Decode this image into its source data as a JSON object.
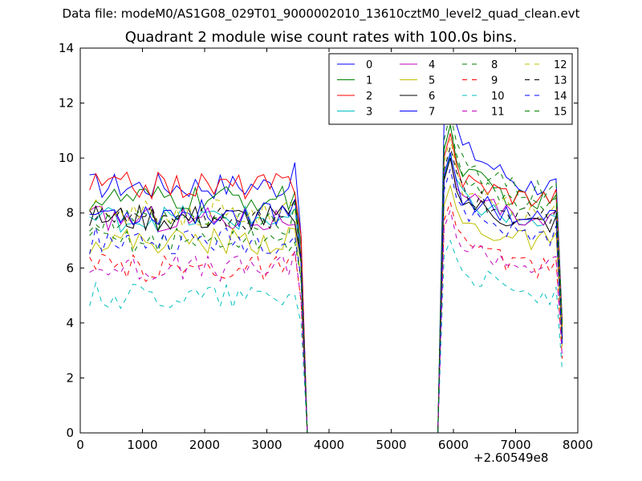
{
  "chart_data": {
    "type": "line",
    "suptitle": "Data file: modeM0/AS1G08_029T01_9000002010_13610cztM0_level2_quad_clean.evt",
    "title": "Quadrant 2 module wise count rates with 100.0s bins.",
    "xlabel": "",
    "ylabel": "",
    "x_offset_label": "+2.60549e8",
    "xlim": [
      0,
      8000
    ],
    "ylim": [
      0,
      14
    ],
    "x_ticks": [
      0,
      1000,
      2000,
      3000,
      4000,
      5000,
      6000,
      7000,
      8000
    ],
    "y_ticks": [
      0,
      2,
      4,
      6,
      8,
      10,
      12,
      14
    ],
    "legend": "top-right",
    "grid": false,
    "gap": [
      3650,
      5750
    ],
    "x_segment1": [
      150,
      250,
      350,
      450,
      550,
      650,
      750,
      850,
      950,
      1050,
      1150,
      1250,
      1350,
      1450,
      1550,
      1650,
      1750,
      1850,
      1950,
      2050,
      2150,
      2250,
      2350,
      2450,
      2550,
      2650,
      2750,
      2850,
      2950,
      3050,
      3150,
      3250,
      3350,
      3450,
      3550
    ],
    "x_segment2": [
      5850,
      5950,
      6050,
      6150,
      6250,
      6350,
      6450,
      6550,
      6650,
      6750,
      6850,
      6950,
      7050,
      7150,
      7250,
      7350,
      7450,
      7550,
      7650,
      7750
    ],
    "drop_to_zero": 3650,
    "rise_from_zero": 5750,
    "series": [
      {
        "name": "0",
        "color": "#0000ff",
        "dash": "solid",
        "level1": 9.0,
        "level2": 12.4,
        "tail2": 9.0
      },
      {
        "name": "1",
        "color": "#008000",
        "dash": "solid",
        "level1": 8.5,
        "level2": 11.2,
        "tail2": 8.4
      },
      {
        "name": "2",
        "color": "#ff0000",
        "dash": "solid",
        "level1": 9.0,
        "level2": 10.9,
        "tail2": 8.6
      },
      {
        "name": "3",
        "color": "#00bfbf",
        "dash": "solid",
        "level1": 7.8,
        "level2": 10.1,
        "tail2": 7.6
      },
      {
        "name": "4",
        "color": "#bf00bf",
        "dash": "solid",
        "level1": 7.8,
        "level2": 10.0,
        "tail2": 7.8
      },
      {
        "name": "5",
        "color": "#bfbf00",
        "dash": "solid",
        "level1": 7.0,
        "level2": 9.0,
        "tail2": 7.0
      },
      {
        "name": "6",
        "color": "#000000",
        "dash": "solid",
        "level1": 7.8,
        "level2": 10.0,
        "tail2": 7.6
      },
      {
        "name": "7",
        "color": "#0000ff",
        "dash": "solid",
        "level1": 8.0,
        "level2": 10.2,
        "tail2": 7.8
      },
      {
        "name": "8",
        "color": "#008000",
        "dash": "dashed",
        "level1": 7.0,
        "level2": 11.6,
        "tail2": 8.8
      },
      {
        "name": "9",
        "color": "#ff0000",
        "dash": "dashed",
        "level1": 6.0,
        "level2": 8.4,
        "tail2": 6.0
      },
      {
        "name": "10",
        "color": "#00bfbf",
        "dash": "dashed",
        "level1": 5.0,
        "level2": 7.0,
        "tail2": 5.0
      },
      {
        "name": "11",
        "color": "#bf00bf",
        "dash": "dashed",
        "level1": 6.0,
        "level2": 8.1,
        "tail2": 6.1
      },
      {
        "name": "12",
        "color": "#bfbf00",
        "dash": "dashed",
        "level1": 8.0,
        "level2": 10.7,
        "tail2": 8.0
      },
      {
        "name": "13",
        "color": "#000000",
        "dash": "dashed",
        "level1": 7.8,
        "level2": 10.4,
        "tail2": 7.8
      },
      {
        "name": "14",
        "color": "#0000ff",
        "dash": "dashed",
        "level1": 7.0,
        "level2": 9.6,
        "tail2": 7.2
      },
      {
        "name": "15",
        "color": "#008000",
        "dash": "dashed",
        "level1": 7.6,
        "level2": 11.2,
        "tail2": 8.2
      }
    ]
  }
}
